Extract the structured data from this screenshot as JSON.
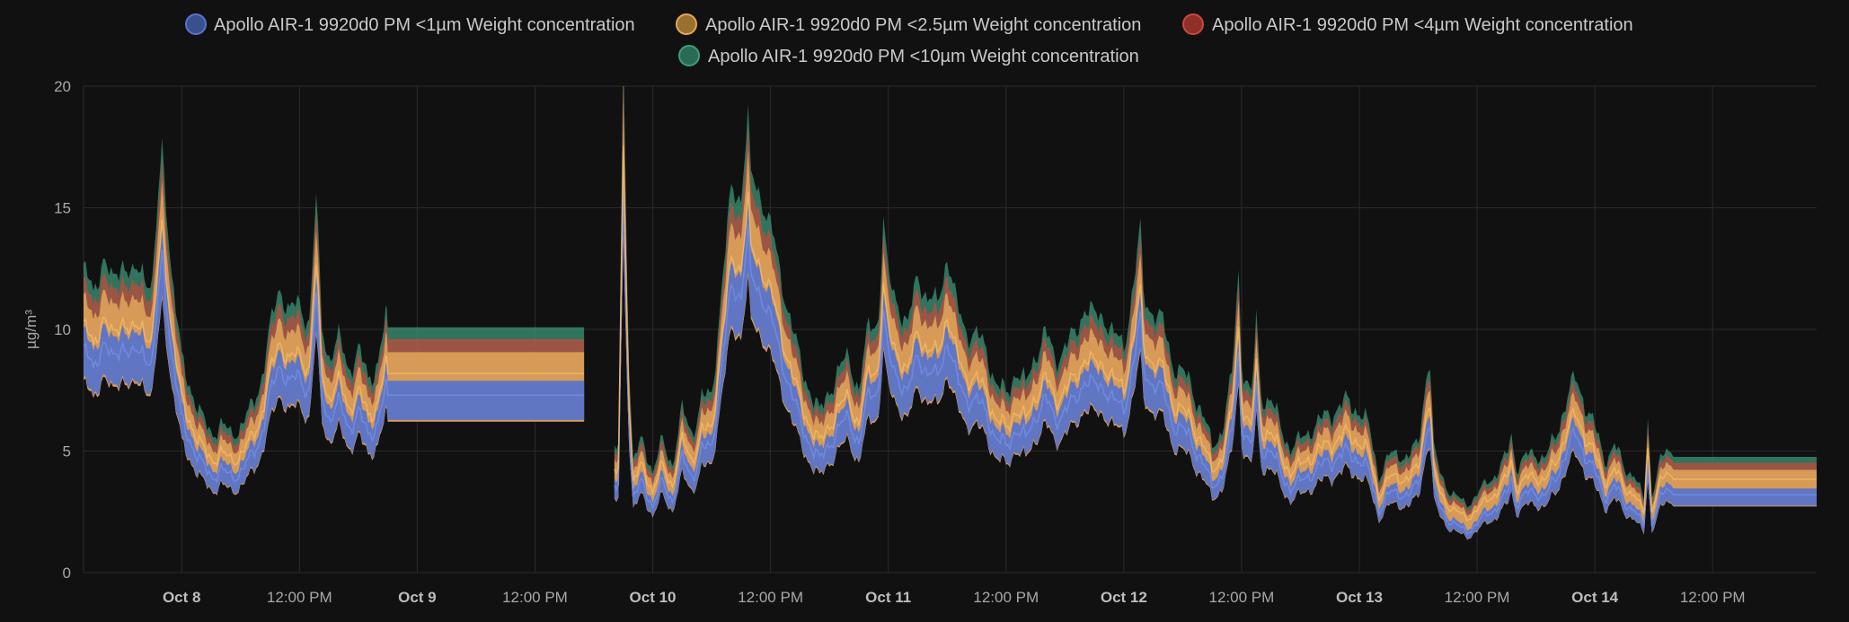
{
  "chart_data": {
    "type": "area",
    "title": "",
    "xlabel": "",
    "ylabel": "µg/m³",
    "ylim": [
      0,
      20
    ],
    "yticks": [
      0,
      5,
      10,
      15,
      20
    ],
    "grid": true,
    "legend": "top-center",
    "x_unit": "hours since Oct 7 00:00",
    "xlim": [
      14,
      190.6
    ],
    "xticks": [
      {
        "label": "Oct 8",
        "bold": true
      },
      {
        "label": "12:00 PM",
        "bold": false
      },
      {
        "label": "Oct 9",
        "bold": true
      },
      {
        "label": "12:00 PM",
        "bold": false
      },
      {
        "label": "Oct 10",
        "bold": true
      },
      {
        "label": "12:00 PM",
        "bold": false
      },
      {
        "label": "Oct 11",
        "bold": true
      },
      {
        "label": "12:00 PM",
        "bold": false
      },
      {
        "label": "Oct 12",
        "bold": true
      },
      {
        "label": "12:00 PM",
        "bold": false
      },
      {
        "label": "Oct 13",
        "bold": true
      },
      {
        "label": "12:00 PM",
        "bold": false
      },
      {
        "label": "Oct 14",
        "bold": true
      },
      {
        "label": "12:00 PM",
        "bold": false
      }
    ],
    "series": [
      {
        "name": "Apollo AIR-1 9920d0 PM <1µm Weight concentration",
        "color": "#5a74c9",
        "offset": 0
      },
      {
        "name": "Apollo AIR-1 9920d0 PM <2.5µm Weight concentration",
        "color": "#e2a75a",
        "offset": 0.45
      },
      {
        "name": "Apollo AIR-1 9920d0 PM <4µm Weight concentration",
        "color": "#c9483c",
        "offset": 0.55
      },
      {
        "name": "Apollo AIR-1 9920d0 PM <10µm Weight concentration",
        "color": "#3f9c7e",
        "offset": 0.6
      }
    ],
    "pm1_keypoints": [
      [
        14,
        9.2
      ],
      [
        15,
        8.3
      ],
      [
        16,
        9.6
      ],
      [
        17,
        8.6
      ],
      [
        18,
        9.5
      ],
      [
        19,
        8.8
      ],
      [
        20,
        9.2
      ],
      [
        21,
        8.6
      ],
      [
        22,
        13.0
      ],
      [
        23,
        9.0
      ],
      [
        24,
        6.2
      ],
      [
        25,
        5.4
      ],
      [
        26,
        4.4
      ],
      [
        27,
        4.0
      ],
      [
        28,
        4.2
      ],
      [
        29,
        3.9
      ],
      [
        30,
        4.2
      ],
      [
        31,
        4.6
      ],
      [
        32,
        5.6
      ],
      [
        33,
        7.2
      ],
      [
        34,
        8.6
      ],
      [
        35,
        7.8
      ],
      [
        36,
        8.0
      ],
      [
        37,
        7.5
      ],
      [
        37.7,
        11.4
      ],
      [
        38.3,
        7.3
      ],
      [
        39,
        6.4
      ],
      [
        40,
        6.9
      ],
      [
        41,
        6.0
      ],
      [
        42,
        6.6
      ],
      [
        43,
        5.6
      ],
      [
        44,
        6.3
      ],
      [
        44.8,
        7.5
      ],
      [
        45,
        7.3
      ],
      [
        65,
        7.3
      ],
      [
        65.1,
        null
      ],
      [
        68,
        null
      ],
      [
        68.1,
        3.3
      ],
      [
        68.5,
        3.6
      ],
      [
        69.0,
        16.2
      ],
      [
        69.6,
        6.0
      ],
      [
        70,
        3.0
      ],
      [
        71,
        3.8
      ],
      [
        72,
        2.7
      ],
      [
        73,
        3.7
      ],
      [
        74,
        3.0
      ],
      [
        75,
        4.6
      ],
      [
        76,
        4.0
      ],
      [
        77,
        5.0
      ],
      [
        78,
        5.1
      ],
      [
        79,
        8.5
      ],
      [
        80,
        11.6
      ],
      [
        81,
        11.5
      ],
      [
        81.7,
        14.0
      ],
      [
        82,
        12.0
      ],
      [
        83,
        11.5
      ],
      [
        84,
        10.5
      ],
      [
        85,
        9.0
      ],
      [
        86,
        7.6
      ],
      [
        87,
        6.2
      ],
      [
        88,
        5.4
      ],
      [
        89,
        4.5
      ],
      [
        90,
        5.4
      ],
      [
        91,
        5.9
      ],
      [
        92,
        6.4
      ],
      [
        93,
        5.3
      ],
      [
        94,
        7.3
      ],
      [
        95,
        7.6
      ],
      [
        95.5,
        10.7
      ],
      [
        96,
        8.8
      ],
      [
        97,
        8.1
      ],
      [
        98,
        7.3
      ],
      [
        99,
        9.0
      ],
      [
        100,
        8.2
      ],
      [
        101,
        8.0
      ],
      [
        102,
        9.6
      ],
      [
        103,
        7.9
      ],
      [
        104,
        7.2
      ],
      [
        105,
        7.0
      ],
      [
        106,
        6.6
      ],
      [
        107,
        5.5
      ],
      [
        108,
        5.1
      ],
      [
        109,
        6.0
      ],
      [
        110,
        5.4
      ],
      [
        111,
        6.5
      ],
      [
        112,
        7.1
      ],
      [
        113,
        6.3
      ],
      [
        114,
        6.7
      ],
      [
        115,
        7.0
      ],
      [
        116,
        8.0
      ],
      [
        117,
        7.6
      ],
      [
        118,
        7.7
      ],
      [
        119,
        7.0
      ],
      [
        120,
        6.7
      ],
      [
        121,
        8.7
      ],
      [
        121.7,
        10.4
      ],
      [
        122,
        8.3
      ],
      [
        123,
        7.8
      ],
      [
        124,
        7.4
      ],
      [
        125,
        6.2
      ],
      [
        126,
        5.8
      ],
      [
        127,
        5.4
      ],
      [
        128,
        4.6
      ],
      [
        129,
        3.5
      ],
      [
        130,
        4.1
      ],
      [
        131,
        5.6
      ],
      [
        131.7,
        9.2
      ],
      [
        132,
        6.3
      ],
      [
        133,
        5.0
      ],
      [
        133.5,
        7.5
      ],
      [
        134,
        5.2
      ],
      [
        135,
        5.0
      ],
      [
        136,
        4.1
      ],
      [
        137,
        3.5
      ],
      [
        138,
        3.7
      ],
      [
        139,
        4.1
      ],
      [
        140,
        4.3
      ],
      [
        141,
        4.6
      ],
      [
        142,
        4.8
      ],
      [
        143,
        4.9
      ],
      [
        144,
        4.7
      ],
      [
        145,
        4.1
      ],
      [
        146,
        2.6
      ],
      [
        147,
        3.2
      ],
      [
        148,
        3.3
      ],
      [
        149,
        3.2
      ],
      [
        150,
        3.6
      ],
      [
        150.8,
        5.8
      ],
      [
        151.2,
        6.3
      ],
      [
        151.6,
        3.4
      ],
      [
        152,
        2.9
      ],
      [
        153,
        2.2
      ],
      [
        154,
        1.9
      ],
      [
        155,
        1.7
      ],
      [
        156,
        2.0
      ],
      [
        157,
        2.4
      ],
      [
        158,
        2.7
      ],
      [
        159,
        3.2
      ],
      [
        159.5,
        3.9
      ],
      [
        160,
        2.9
      ],
      [
        161,
        3.2
      ],
      [
        162,
        3.3
      ],
      [
        163,
        3.2
      ],
      [
        164,
        3.8
      ],
      [
        165,
        5.0
      ],
      [
        166,
        5.6
      ],
      [
        167,
        5.0
      ],
      [
        168,
        4.1
      ],
      [
        169,
        3.1
      ],
      [
        170,
        3.6
      ],
      [
        171,
        2.8
      ],
      [
        172,
        2.7
      ],
      [
        173,
        1.8
      ],
      [
        173.4,
        4.5
      ],
      [
        173.8,
        2.0
      ],
      [
        174.5,
        3.0
      ],
      [
        175.3,
        3.3
      ],
      [
        176,
        3.2
      ],
      [
        196,
        3.2
      ]
    ]
  }
}
